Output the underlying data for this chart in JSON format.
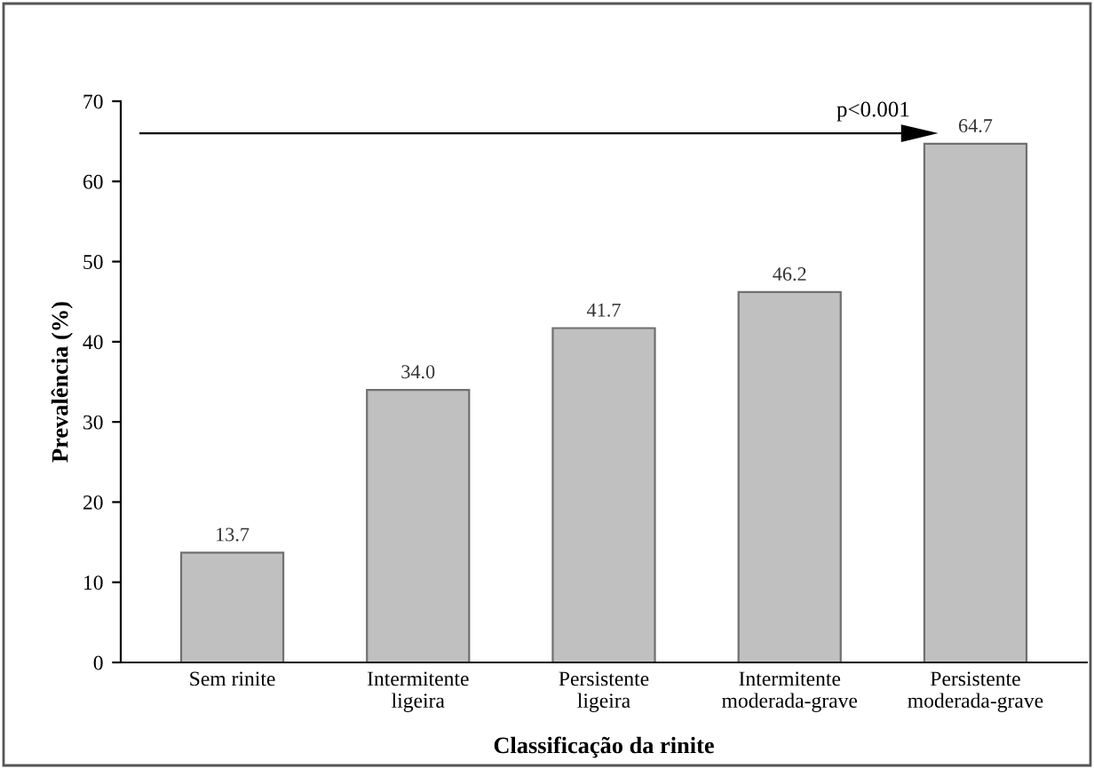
{
  "chart_data": {
    "type": "bar",
    "categories": [
      "Sem rinite",
      "Intermitente\nligeira",
      "Persistente\nligeira",
      "Intermitente\nmoderada-grave",
      "Persistente\nmoderada-grave"
    ],
    "values": [
      13.7,
      34.0,
      41.7,
      46.2,
      64.7
    ],
    "value_labels": [
      "13.7",
      "34.0",
      "41.7",
      "46.2",
      "64.7"
    ],
    "color": "#c0c0c0",
    "xlabel": "Classificação da rinite",
    "ylabel": "Prevalência (%)",
    "ylim": [
      0,
      70
    ],
    "yticks": [
      0,
      10,
      20,
      30,
      40,
      50,
      60,
      70
    ],
    "annotations": [
      "p<0.001"
    ],
    "grid": false,
    "legend": false
  }
}
